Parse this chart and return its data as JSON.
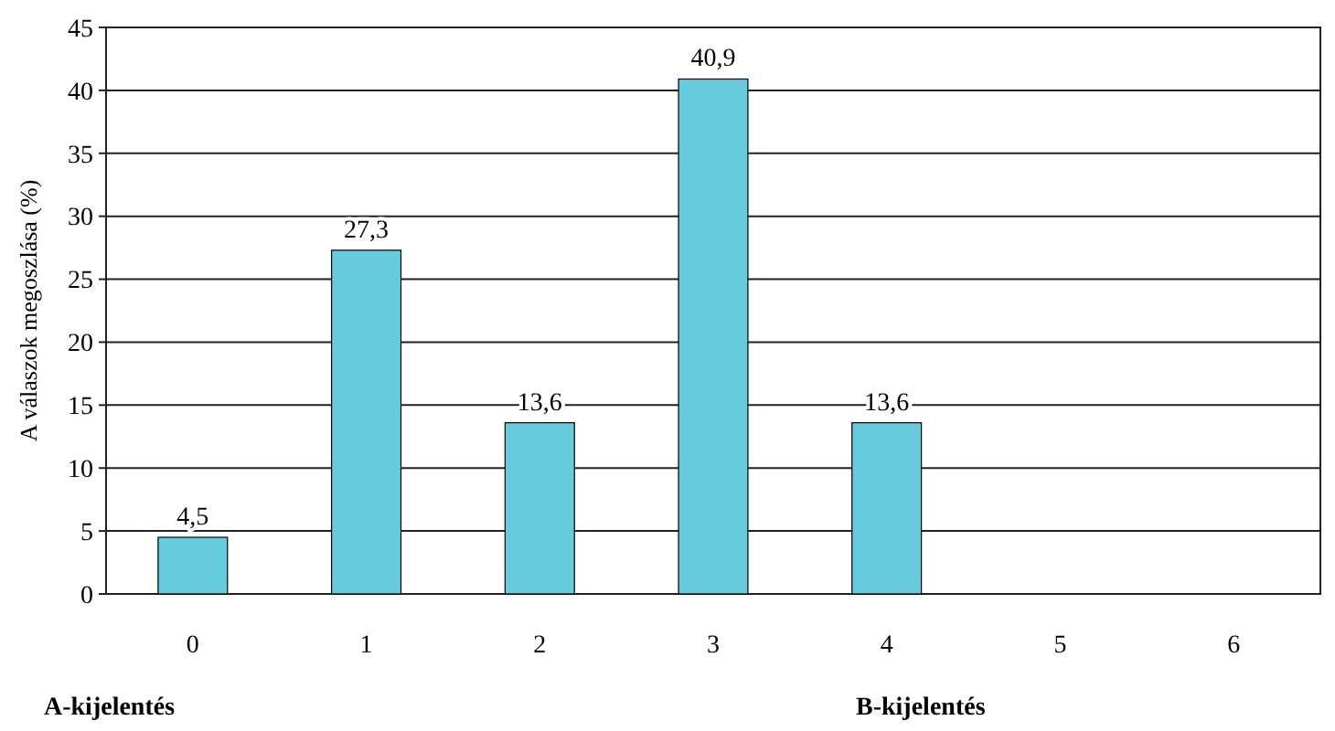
{
  "chart_data": {
    "type": "bar",
    "ylabel": "A  válaszok megoszlása (%)",
    "categories": [
      "0",
      "1",
      "2",
      "3",
      "4",
      "5",
      "6"
    ],
    "values": [
      4.5,
      27.3,
      13.6,
      40.9,
      13.6,
      null,
      null
    ],
    "value_labels": [
      "4,5",
      "27,3",
      "13,6",
      "40,9",
      "13,6",
      null,
      null
    ],
    "color": "#66ccdd",
    "ylim": [
      0,
      45
    ],
    "yticks": [
      0,
      5,
      10,
      15,
      20,
      25,
      30,
      35,
      40,
      45
    ],
    "grid": "y",
    "annotations": [
      "A-kijelentés",
      "B-kijelentés"
    ]
  }
}
